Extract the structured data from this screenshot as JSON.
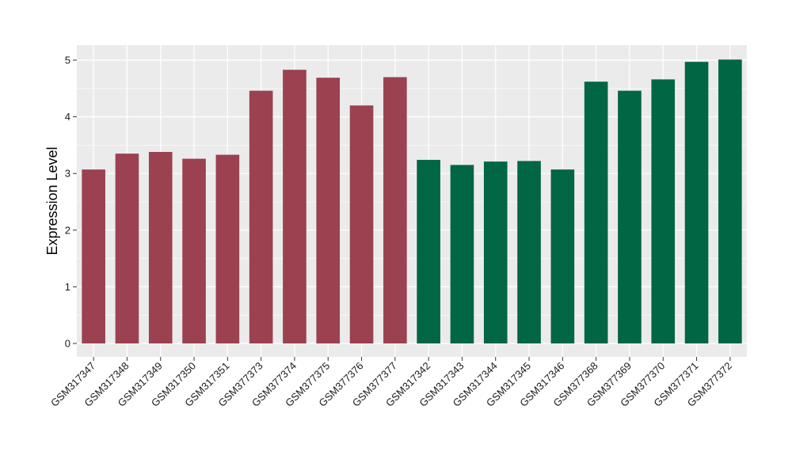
{
  "chart_data": {
    "type": "bar",
    "title": "",
    "xlabel": "",
    "ylabel": "Expression Level",
    "ylim": [
      -0.2,
      5.25
    ],
    "yticks": [
      0,
      1,
      2,
      3,
      4,
      5
    ],
    "grid": true,
    "legend": "none",
    "categories": [
      "GSM317347",
      "GSM317348",
      "GSM317349",
      "GSM317350",
      "GSM317351",
      "GSM377373",
      "GSM377374",
      "GSM377375",
      "GSM377376",
      "GSM377377",
      "GSM317342",
      "GSM317343",
      "GSM317344",
      "GSM317345",
      "GSM317346",
      "GSM377368",
      "GSM377369",
      "GSM377370",
      "GSM377371",
      "GSM377372"
    ],
    "values": [
      3.07,
      3.35,
      3.38,
      3.26,
      3.33,
      4.46,
      4.83,
      4.69,
      4.2,
      4.7,
      3.24,
      3.15,
      3.21,
      3.22,
      3.07,
      4.62,
      4.46,
      4.66,
      4.97,
      5.01
    ],
    "bar_colors": [
      "#9b4150",
      "#9b4150",
      "#9b4150",
      "#9b4150",
      "#9b4150",
      "#9b4150",
      "#9b4150",
      "#9b4150",
      "#9b4150",
      "#9b4150",
      "#006644",
      "#006644",
      "#006644",
      "#006644",
      "#006644",
      "#006644",
      "#006644",
      "#006644",
      "#006644",
      "#006644"
    ],
    "panel_background": "#ebebeb",
    "grid_color": "#ffffff"
  }
}
